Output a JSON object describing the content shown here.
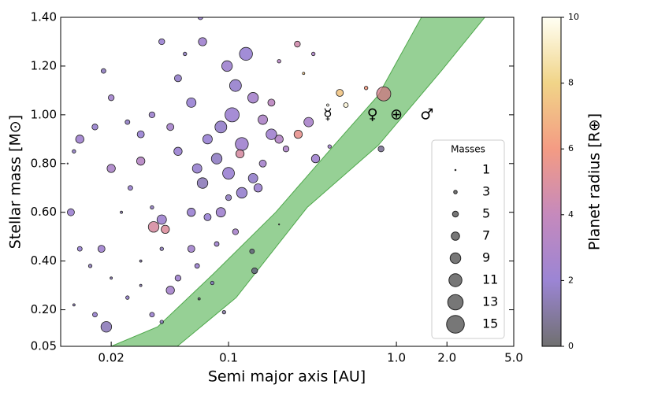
{
  "chart_data": {
    "type": "scatter",
    "xlabel": "Semi major axis [AU]",
    "ylabel": "Stellar mass [M⊙]",
    "x_scale": "log",
    "xlim": [
      0.01,
      5
    ],
    "ylim": [
      0.05,
      1.4
    ],
    "xticks": [
      0.02,
      0.1,
      {
        "value": 1,
        "label": "1.0"
      },
      {
        "value": 2,
        "label": "2.0"
      },
      {
        "value": 5,
        "label": "5.0"
      }
    ],
    "yticks": [
      0.05,
      {
        "value": 0.2,
        "label": "0.20"
      },
      {
        "value": 0.4,
        "label": "0.40"
      },
      {
        "value": 0.6,
        "label": "0.60"
      },
      {
        "value": 0.8,
        "label": "0.80"
      },
      {
        "value": 1,
        "label": "1.00"
      },
      {
        "value": 1.2,
        "label": "1.20"
      },
      {
        "value": 1.4,
        "label": "1.40"
      }
    ],
    "x": [
      0.127,
      0.098,
      0.11,
      0.14,
      0.105,
      0.16,
      0.09,
      0.075,
      0.12,
      0.2,
      0.085,
      0.065,
      0.1,
      0.14,
      0.07,
      0.05,
      0.045,
      0.06,
      0.05,
      0.07,
      0.068,
      0.04,
      0.055,
      0.035,
      0.03,
      0.025,
      0.02,
      0.018,
      0.016,
      0.013,
      0.012,
      0.011,
      0.0115,
      0.02,
      0.03,
      0.026,
      0.023,
      0.035,
      0.04,
      0.06,
      0.075,
      0.09,
      0.1,
      0.12,
      0.15,
      0.11,
      0.085,
      0.06,
      0.04,
      0.03,
      0.05,
      0.065,
      0.08,
      0.045,
      0.03,
      0.025,
      0.035,
      0.04,
      0.0187,
      0.016,
      0.012,
      0.015,
      0.02,
      0.013,
      0.0175,
      0.0358,
      0.042,
      0.117,
      0.257,
      0.26,
      0.28,
      0.46,
      0.5,
      0.39,
      0.66,
      0.84,
      0.81,
      0.138,
      0.143,
      0.0668,
      0.094,
      0.2,
      0.3,
      0.4,
      0.33,
      0.2,
      0.18,
      0.22,
      0.16,
      0.18,
      0.32
    ],
    "values": [
      1.25,
      1.2,
      1.12,
      1.07,
      1.0,
      0.98,
      0.95,
      0.9,
      0.88,
      0.9,
      0.82,
      0.78,
      0.76,
      0.74,
      0.72,
      0.85,
      0.95,
      1.05,
      1.15,
      1.3,
      1.4,
      1.3,
      1.25,
      1.0,
      0.92,
      0.97,
      1.07,
      1.18,
      0.95,
      0.9,
      0.85,
      0.8,
      0.6,
      0.78,
      0.81,
      0.7,
      0.6,
      0.62,
      0.57,
      0.6,
      0.58,
      0.6,
      0.66,
      0.68,
      0.7,
      0.52,
      0.47,
      0.45,
      0.45,
      0.4,
      0.33,
      0.38,
      0.31,
      0.28,
      0.3,
      0.25,
      0.18,
      0.15,
      0.13,
      0.18,
      0.22,
      0.38,
      0.33,
      0.45,
      0.45,
      0.54,
      0.53,
      0.84,
      1.29,
      0.92,
      1.17,
      1.09,
      1.04,
      1.04,
      1.11,
      1.086,
      0.86,
      0.44,
      0.36,
      0.245,
      0.19,
      0.55,
      0.97,
      0.87,
      0.82,
      1.22,
      1.05,
      0.86,
      0.8,
      0.92,
      1.25
    ],
    "sizes": [
      11,
      9,
      10,
      9,
      12,
      8,
      10,
      8,
      11,
      7,
      9,
      8,
      10,
      8,
      9,
      7,
      6,
      8,
      6,
      7,
      4,
      5,
      3,
      5,
      6,
      4,
      5,
      4,
      5,
      7,
      3,
      1,
      6,
      7,
      7,
      4,
      2,
      3,
      8,
      7,
      6,
      8,
      5,
      9,
      7,
      5,
      4,
      6,
      3,
      2,
      5,
      4,
      3,
      7,
      2,
      3,
      4,
      3,
      9,
      4,
      2,
      3,
      2,
      4,
      6,
      9,
      7,
      7,
      5,
      7,
      2,
      6,
      4,
      2,
      3,
      12,
      5,
      4,
      5,
      2,
      3,
      1,
      8,
      3,
      7,
      3,
      6,
      5,
      6,
      9,
      3
    ],
    "radii": [
      2.0,
      2.3,
      1.9,
      2.6,
      2.2,
      3.0,
      1.8,
      2.0,
      2.4,
      3.2,
      1.7,
      1.9,
      2.1,
      1.8,
      1.5,
      2.1,
      2.6,
      2.0,
      1.8,
      2.4,
      2.0,
      2.1,
      1.6,
      2.3,
      2.0,
      1.7,
      2.5,
      1.6,
      1.9,
      2.4,
      1.7,
      1.5,
      2.2,
      2.9,
      3.3,
      2.1,
      1.5,
      1.6,
      2.3,
      2.1,
      2.0,
      2.4,
      1.6,
      1.9,
      2.2,
      2.7,
      2.4,
      2.5,
      1.6,
      1.2,
      2.4,
      2.2,
      2.0,
      2.6,
      1.5,
      1.8,
      2.2,
      1.7,
      1.5,
      1.9,
      1.5,
      1.5,
      1.6,
      2.0,
      2.4,
      4.8,
      5.0,
      4.8,
      4.5,
      5.5,
      7.5,
      7.5,
      9.5,
      9.8,
      6.0,
      5.0,
      0.8,
      0.8,
      0.8,
      0.8,
      1.0,
      0.8,
      2.8,
      2.5,
      2.4,
      3.3,
      3.6,
      3.0,
      2.6,
      2.4,
      3.0
    ],
    "colormap": [
      "#404040",
      "#7a5cc6",
      "#b262a6",
      "#f07a5a",
      "#ecc660",
      "#fffff0"
    ],
    "habitable_zone": {
      "color": "#7cc47a",
      "inner": {
        "x": [
          0.02,
          0.0378,
          0.0806,
          0.191,
          0.407,
          0.78,
          1.41
        ],
        "y": [
          0.05,
          0.13,
          0.345,
          0.6,
          0.86,
          1.08,
          1.4
        ]
      },
      "outer": {
        "x": [
          0.0495,
          0.111,
          0.294,
          0.78,
          1.85,
          3.36
        ],
        "y": [
          0.05,
          0.25,
          0.62,
          0.875,
          1.18,
          1.4
        ]
      }
    },
    "solar_system": [
      {
        "label": "☿",
        "x": 0.39,
        "y": 1.0
      },
      {
        "label": "♀",
        "x": 0.72,
        "y": 1.0
      },
      {
        "label": "⊕",
        "x": 1.0,
        "y": 1.0
      },
      {
        "label": "♂",
        "x": 1.52,
        "y": 1.0
      }
    ],
    "colorbar": {
      "label": "Planet radius [R⊕]",
      "lim": [
        0,
        10
      ],
      "ticks": [
        0,
        2,
        4,
        6,
        8,
        10
      ]
    },
    "size_legend": {
      "title": "Masses",
      "sizes": [
        1,
        3,
        5,
        7,
        9,
        11,
        13,
        15
      ]
    }
  }
}
